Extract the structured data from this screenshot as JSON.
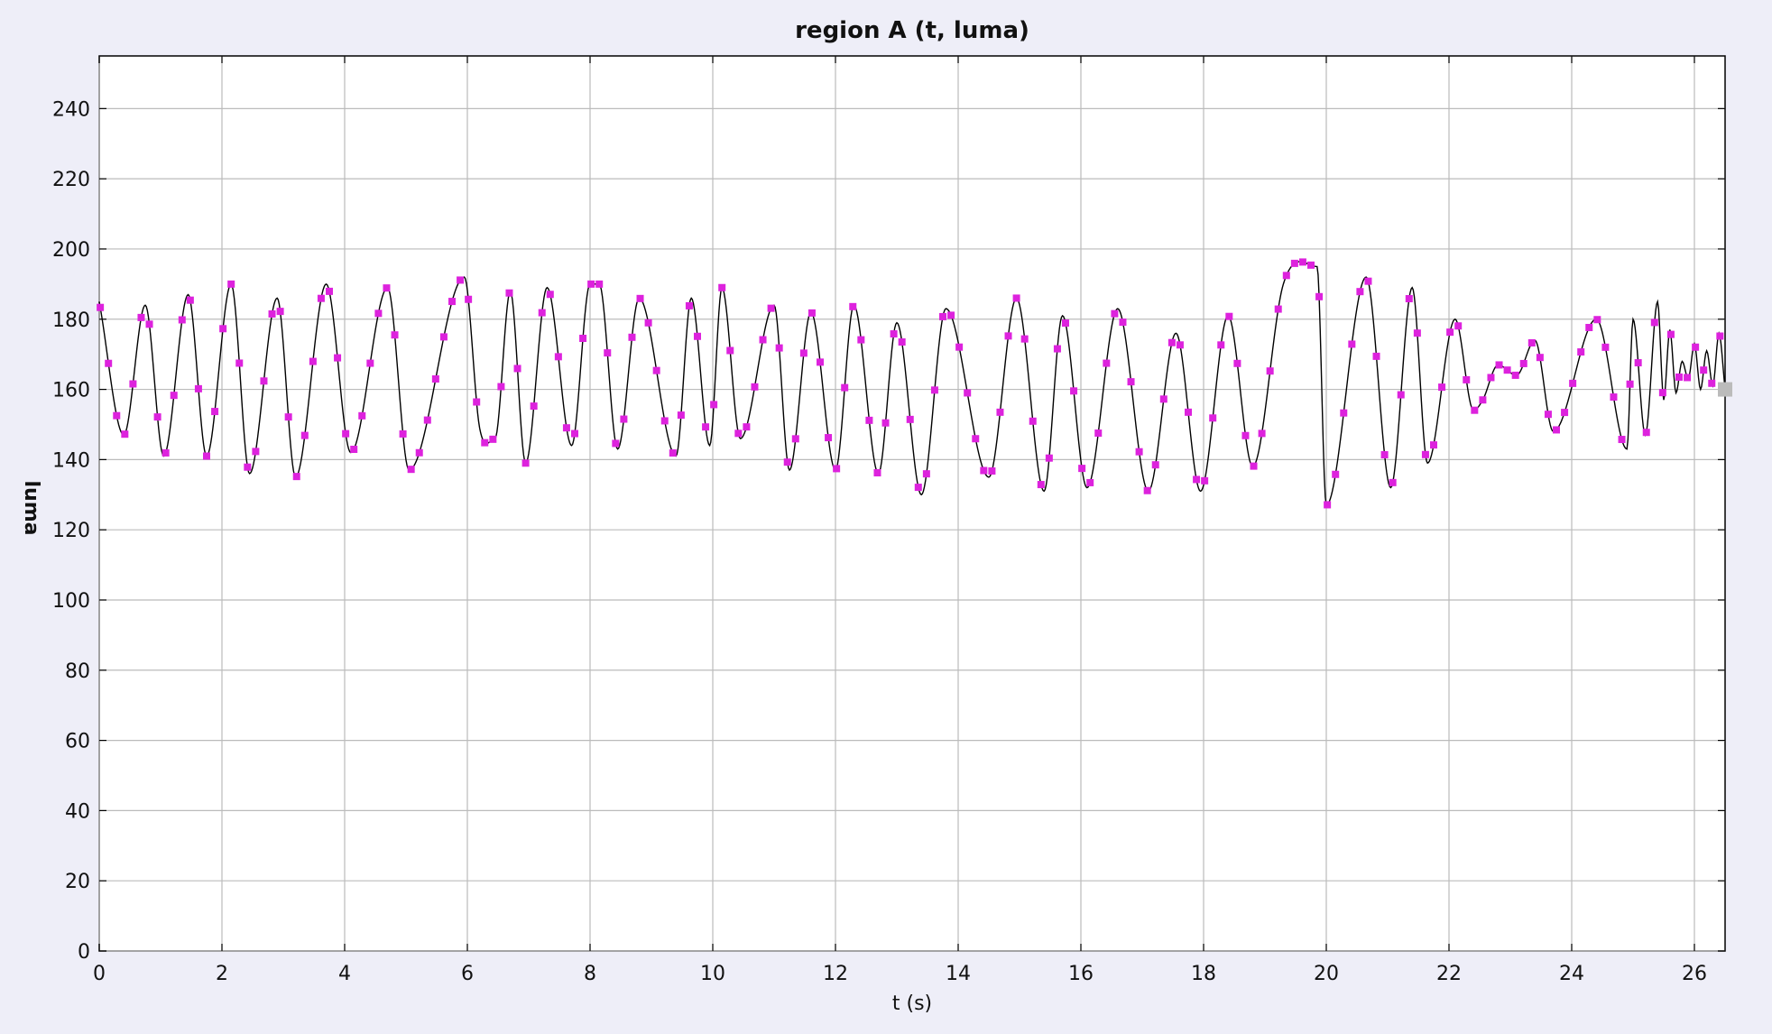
{
  "chart_data": {
    "type": "line",
    "title": "region A (t, luma)",
    "xlabel": "t (s)",
    "ylabel": "luma",
    "xlim": [
      0,
      26.5
    ],
    "ylim": [
      0,
      255
    ],
    "xticks": [
      0,
      2,
      4,
      6,
      8,
      10,
      12,
      14,
      16,
      18,
      20,
      22,
      24,
      26
    ],
    "yticks": [
      0,
      20,
      40,
      60,
      80,
      100,
      120,
      140,
      160,
      180,
      200,
      220,
      240
    ],
    "grid": true,
    "colors": {
      "line": "#000000",
      "marker": "#dd22dd",
      "grid": "#bbbbbb",
      "last_marker": "#bbbbbb"
    },
    "series": [
      {
        "x": [
          0.0,
          0.4,
          0.75,
          1.05,
          1.45,
          1.75,
          2.15,
          2.45,
          2.9,
          3.2,
          3.7,
          4.1,
          4.7,
          5.05,
          5.95,
          6.2,
          6.45,
          6.7,
          6.95,
          7.3,
          7.7,
          8.0,
          8.15,
          8.45,
          8.8,
          9.4,
          9.65,
          9.95,
          10.15,
          10.45,
          11.0,
          11.25,
          11.6,
          12.0,
          12.3,
          12.7,
          13.0,
          13.4,
          13.8,
          14.5,
          14.95,
          15.4,
          15.7,
          16.1,
          16.6,
          17.1,
          17.55,
          17.95,
          18.4,
          18.8,
          19.3,
          19.85,
          20.0,
          20.65,
          21.05,
          21.4,
          21.65,
          22.1,
          22.4,
          22.55,
          22.8,
          23.1,
          23.4,
          23.7,
          24.4,
          24.9,
          25.0,
          25.2,
          25.4,
          25.5,
          25.6,
          25.7,
          25.8,
          25.9,
          26.0,
          26.1,
          26.2,
          26.3,
          26.4,
          26.5
        ],
        "y": [
          185,
          147,
          184,
          141,
          187,
          141,
          190,
          136,
          186,
          135,
          190,
          142,
          189,
          137,
          192,
          149,
          146,
          188,
          139,
          189,
          144,
          190,
          190,
          143,
          186,
          141,
          186,
          144,
          189,
          146,
          184,
          137,
          182,
          137,
          184,
          136,
          179,
          130,
          183,
          135,
          186,
          131,
          181,
          132,
          183,
          131,
          176,
          131,
          181,
          138,
          190,
          195,
          127,
          192,
          132,
          189,
          139,
          180,
          154,
          157,
          167,
          164,
          174,
          148,
          180,
          143,
          180,
          147,
          185,
          157,
          177,
          159,
          168,
          163,
          173,
          160,
          171,
          161,
          176,
          160
        ]
      }
    ]
  }
}
